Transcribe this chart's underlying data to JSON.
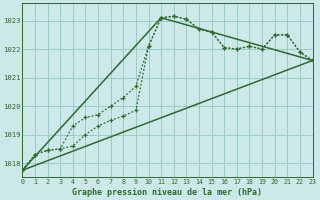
{
  "background_color": "#cce8e8",
  "grid_color": "#99cccc",
  "line_color": "#2d6b2d",
  "title": "Graphe pression niveau de la mer (hPa)",
  "xlim": [
    0,
    23
  ],
  "ylim": [
    1017.5,
    1023.6
  ],
  "yticks": [
    1018,
    1019,
    1020,
    1021,
    1022,
    1023
  ],
  "xticks": [
    0,
    1,
    2,
    3,
    4,
    5,
    6,
    7,
    8,
    9,
    10,
    11,
    12,
    13,
    14,
    15,
    16,
    17,
    18,
    19,
    20,
    21,
    22,
    23
  ],
  "series1_x": [
    0,
    1,
    2,
    3,
    4,
    5,
    6,
    7,
    8,
    9,
    10,
    11,
    12,
    13,
    14,
    15,
    16,
    17,
    18,
    19,
    20,
    21,
    22,
    23
  ],
  "series1_y": [
    1017.75,
    1018.3,
    1018.45,
    1018.5,
    1019.3,
    1019.6,
    1019.7,
    1020.0,
    1020.3,
    1020.7,
    1022.1,
    1023.1,
    1023.15,
    1023.05,
    1022.7,
    1022.6,
    1022.05,
    1022.0,
    1022.1,
    1022.0,
    1022.5,
    1022.5,
    1021.9,
    1021.6
  ],
  "series2_x": [
    0,
    1,
    2,
    3,
    4,
    5,
    6,
    7,
    8,
    9,
    10,
    11,
    12,
    13,
    14,
    15,
    16,
    17,
    18,
    19,
    20,
    21,
    22,
    23
  ],
  "series2_y": [
    1017.75,
    1018.3,
    1018.45,
    1018.5,
    1018.6,
    1019.0,
    1019.3,
    1019.5,
    1019.65,
    1019.85,
    1022.1,
    1023.1,
    1023.15,
    1023.05,
    1022.7,
    1022.6,
    1022.05,
    1022.0,
    1022.1,
    1022.0,
    1022.5,
    1022.5,
    1021.9,
    1021.6
  ],
  "series3_x": [
    0,
    23
  ],
  "series3_y": [
    1017.75,
    1021.6
  ],
  "series4_x": [
    0,
    11,
    23
  ],
  "series4_y": [
    1017.75,
    1023.1,
    1021.6
  ]
}
